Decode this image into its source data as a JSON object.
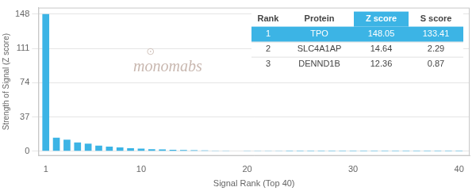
{
  "chart_data": {
    "type": "bar",
    "x": [
      1,
      2,
      3,
      4,
      5,
      6,
      7,
      8,
      9,
      10,
      11,
      12,
      13,
      14,
      15,
      16,
      17,
      18,
      19,
      20,
      21,
      22,
      23,
      24,
      25,
      26,
      27,
      28,
      29,
      30,
      31,
      32,
      33,
      34,
      35,
      36,
      37,
      38,
      39,
      40
    ],
    "values": [
      148.05,
      14.64,
      12.36,
      9.5,
      8.2,
      6.1,
      5.0,
      4.0,
      3.2,
      2.8,
      2.2,
      1.9,
      1.6,
      1.3,
      1.1,
      0.9,
      0.7,
      0.55,
      0.42,
      0.32,
      0.25,
      0.19,
      0.14,
      0.1,
      0.07,
      0.05,
      0.04,
      0.03,
      0.02,
      0.015,
      0.012,
      0.009,
      0.007,
      0.005,
      0.004,
      0.003,
      0.002,
      0.002,
      0.001,
      0.001
    ],
    "color": "#3cb4e5",
    "xlabel": "Signal Rank (Top 40)",
    "ylabel": "Strength of Signal (Z score)",
    "xlim": [
      0.3,
      41
    ],
    "xticks": [
      1,
      10,
      20,
      30,
      40
    ],
    "ylim": [
      -5,
      155
    ],
    "yticks": [
      0,
      37,
      74,
      111,
      148
    ],
    "grid": true,
    "annotations": [
      "monomabs",
      "⊙"
    ],
    "table": [
      [
        "Rank",
        "Protein",
        "Z score",
        "S score"
      ],
      [
        "1",
        "TPO",
        "148.05",
        "133.41"
      ],
      [
        "2",
        "SLC4A1AP",
        "14.64",
        "2.29"
      ],
      [
        "3",
        "DENND1B",
        "12.36",
        "0.87"
      ]
    ]
  }
}
